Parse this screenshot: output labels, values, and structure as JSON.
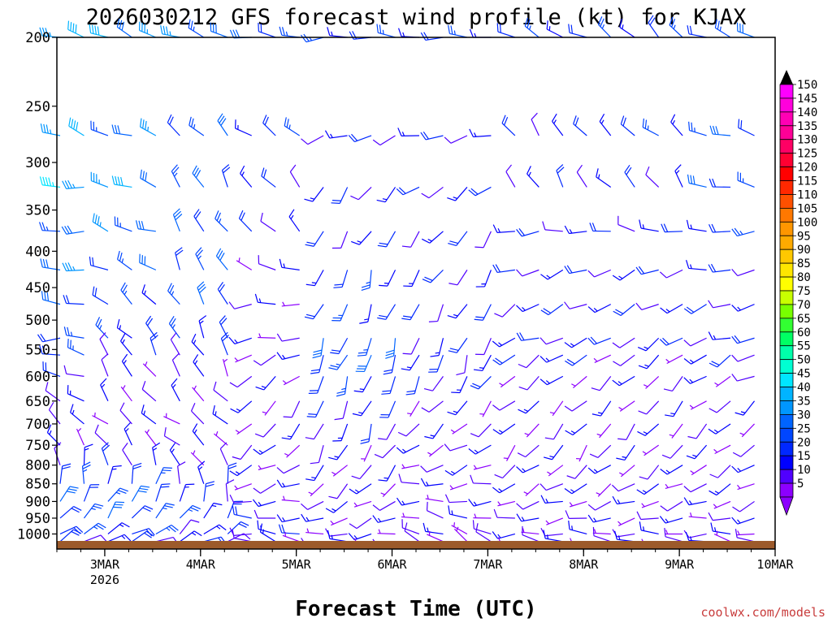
{
  "chart_data": {
    "type": "wind-barb time-height profile",
    "title": "2026030212 GFS forecast wind profile (kt) for KJAX",
    "xlabel": "Forecast Time (UTC)",
    "credit": "coolwx.com/models",
    "y_axis": {
      "scale": "log-pressure",
      "range": [
        1050,
        200
      ],
      "ticks": [
        "200",
        "250",
        "300",
        "350",
        "400",
        "450",
        "500",
        "550",
        "600",
        "650",
        "700",
        "750",
        "800",
        "850",
        "900",
        "950",
        "1000"
      ]
    },
    "x_axis": {
      "range_days": [
        2.5,
        10
      ],
      "ticks": [
        {
          "day": 3,
          "label": "3MAR",
          "sublabel": "2026"
        },
        {
          "day": 4,
          "label": "4MAR",
          "sublabel": ""
        },
        {
          "day": 5,
          "label": "5MAR",
          "sublabel": ""
        },
        {
          "day": 6,
          "label": "6MAR",
          "sublabel": ""
        },
        {
          "day": 7,
          "label": "7MAR",
          "sublabel": ""
        },
        {
          "day": 8,
          "label": "8MAR",
          "sublabel": ""
        },
        {
          "day": 9,
          "label": "9MAR",
          "sublabel": ""
        },
        {
          "day": 10,
          "label": "10MAR",
          "sublabel": ""
        }
      ],
      "time_step_hours": 6
    },
    "barb_levels_hpa": [
      200,
      275,
      325,
      375,
      425,
      475,
      530,
      560,
      600,
      650,
      700,
      750,
      800,
      850,
      900,
      950,
      1000,
      1025
    ],
    "time_blocks": [
      {
        "from_day": 2.5,
        "to_day": 3.0,
        "wind_speed_kt": [
          40,
          35,
          40,
          30,
          30,
          25,
          25,
          20,
          15,
          15,
          10,
          10,
          15,
          20,
          25,
          25,
          20,
          15
        ],
        "wind_dir_deg": [
          290,
          290,
          280,
          270,
          270,
          270,
          270,
          280,
          290,
          300,
          310,
          330,
          350,
          10,
          30,
          40,
          50,
          60
        ]
      },
      {
        "from_day": 3.0,
        "to_day": 3.75,
        "wind_speed_kt": [
          35,
          30,
          35,
          30,
          25,
          20,
          20,
          15,
          10,
          10,
          10,
          10,
          15,
          20,
          25,
          25,
          20,
          15
        ],
        "wind_dir_deg": [
          290,
          290,
          285,
          290,
          300,
          310,
          320,
          330,
          330,
          320,
          310,
          320,
          340,
          10,
          30,
          40,
          60,
          70
        ]
      },
      {
        "from_day": 3.75,
        "to_day": 4.5,
        "wind_speed_kt": [
          30,
          25,
          25,
          25,
          25,
          25,
          20,
          15,
          10,
          10,
          10,
          10,
          10,
          15,
          15,
          20,
          15,
          15
        ],
        "wind_dir_deg": [
          290,
          320,
          330,
          330,
          330,
          330,
          330,
          330,
          330,
          320,
          310,
          310,
          330,
          350,
          10,
          30,
          50,
          60
        ]
      },
      {
        "from_day": 4.5,
        "to_day": 5.25,
        "wind_speed_kt": [
          25,
          20,
          15,
          15,
          10,
          10,
          10,
          10,
          10,
          10,
          10,
          10,
          10,
          10,
          10,
          15,
          15,
          10
        ],
        "wind_dir_deg": [
          280,
          300,
          320,
          310,
          290,
          270,
          260,
          250,
          230,
          220,
          220,
          230,
          240,
          250,
          260,
          270,
          280,
          290
        ]
      },
      {
        "from_day": 5.25,
        "to_day": 6.25,
        "wind_speed_kt": [
          20,
          15,
          15,
          15,
          20,
          20,
          25,
          25,
          20,
          15,
          15,
          10,
          10,
          10,
          10,
          10,
          10,
          10
        ],
        "wind_dir_deg": [
          270,
          250,
          220,
          210,
          200,
          200,
          200,
          200,
          200,
          200,
          200,
          210,
          220,
          230,
          240,
          250,
          260,
          270
        ]
      },
      {
        "from_day": 6.25,
        "to_day": 7.25,
        "wind_speed_kt": [
          20,
          15,
          15,
          15,
          15,
          15,
          15,
          15,
          15,
          10,
          10,
          10,
          10,
          10,
          10,
          10,
          10,
          5
        ],
        "wind_dir_deg": [
          270,
          260,
          230,
          220,
          210,
          210,
          200,
          200,
          210,
          220,
          230,
          240,
          250,
          260,
          270,
          280,
          290,
          300
        ]
      },
      {
        "from_day": 7.25,
        "to_day": 8.25,
        "wind_speed_kt": [
          20,
          15,
          15,
          15,
          15,
          15,
          15,
          15,
          10,
          10,
          10,
          10,
          10,
          10,
          10,
          10,
          10,
          10
        ],
        "wind_dir_deg": [
          300,
          320,
          330,
          260,
          250,
          240,
          250,
          240,
          230,
          230,
          220,
          220,
          230,
          240,
          250,
          260,
          270,
          280
        ]
      },
      {
        "from_day": 8.25,
        "to_day": 9.25,
        "wind_speed_kt": [
          20,
          20,
          15,
          15,
          15,
          15,
          15,
          10,
          10,
          10,
          10,
          10,
          10,
          10,
          10,
          10,
          10,
          10
        ],
        "wind_dir_deg": [
          310,
          310,
          320,
          280,
          250,
          240,
          240,
          230,
          230,
          220,
          220,
          220,
          230,
          240,
          250,
          260,
          270,
          280
        ]
      },
      {
        "from_day": 9.25,
        "to_day": 10.01,
        "wind_speed_kt": [
          25,
          25,
          25,
          20,
          15,
          15,
          15,
          15,
          10,
          10,
          10,
          10,
          10,
          10,
          10,
          10,
          10,
          10
        ],
        "wind_dir_deg": [
          290,
          290,
          280,
          270,
          260,
          250,
          250,
          240,
          240,
          230,
          230,
          230,
          240,
          240,
          250,
          260,
          270,
          280
        ]
      }
    ],
    "colorbar": {
      "labels": [
        "150",
        "145",
        "140",
        "135",
        "130",
        "125",
        "120",
        "115",
        "110",
        "105",
        "100",
        "95",
        "90",
        "85",
        "80",
        "75",
        "70",
        "65",
        "60",
        "55",
        "50",
        "45",
        "40",
        "35",
        "30",
        "25",
        "20",
        "15",
        "10",
        "5"
      ],
      "colors": [
        "#ff00ff",
        "#ff00dc",
        "#ff00b4",
        "#ff0096",
        "#ff0064",
        "#ff0032",
        "#ff0000",
        "#ff2800",
        "#ff5000",
        "#ff7800",
        "#ff9600",
        "#ffaa00",
        "#ffc800",
        "#ffe600",
        "#ffff00",
        "#c8ff00",
        "#78ff00",
        "#32ff32",
        "#00ff64",
        "#00ffaa",
        "#00ffd2",
        "#00e6ff",
        "#00b4ff",
        "#0096ff",
        "#0064ff",
        "#0046ff",
        "#0028ff",
        "#0000ff",
        "#5000ff",
        "#8c00ff"
      ]
    },
    "terrain_color": "#9c5a2b"
  }
}
